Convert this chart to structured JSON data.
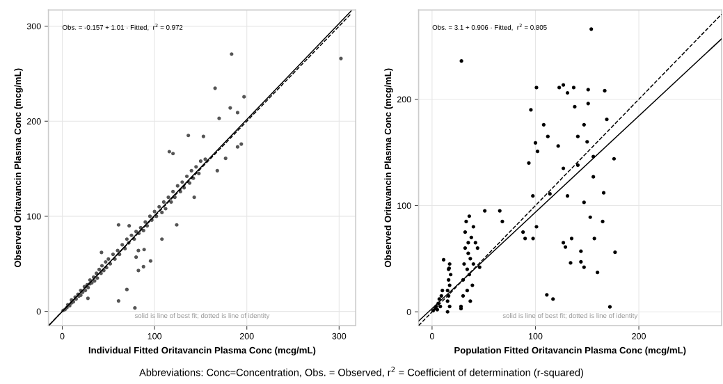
{
  "chart_data": [
    {
      "type": "scatter",
      "xlabel": "Individual Fitted Oritavancin Plasma Conc (mcg/mL)",
      "ylabel": "Observed Oritavancin Plasma Conc (mcg/mL)",
      "xlim": [
        -15,
        318
      ],
      "ylim": [
        -15,
        317
      ],
      "xticks": [
        0,
        100,
        200,
        300
      ],
      "yticks": [
        0,
        100,
        200,
        300
      ],
      "grid": true,
      "annotations": [
        "Obs. = -0.157 + 1.01 · Fitted,  r$^{2}$ = 0.972",
        "solid is line of best fit; dotted is line of identity"
      ],
      "series": [
        {
          "marker": "circle",
          "color": "#555555",
          "x": [
            1,
            3,
            5,
            6,
            8,
            10,
            10,
            12,
            14,
            15,
            17,
            18,
            20,
            20,
            22,
            24,
            25,
            27,
            28,
            30,
            30,
            32,
            34,
            35,
            37,
            38,
            40,
            42,
            43,
            45,
            47,
            48,
            50,
            52,
            55,
            57,
            60,
            62,
            65,
            68,
            70,
            72,
            75,
            78,
            80,
            83,
            85,
            88,
            90,
            92,
            95,
            97,
            100,
            102,
            105,
            108,
            110,
            112,
            115,
            118,
            120,
            122,
            125,
            128,
            130,
            132,
            135,
            138,
            140,
            142,
            145,
            148,
            150,
            155,
            183.5,
            302,
            165.6,
            197,
            170,
            190,
            182,
            136.6,
            153,
            190,
            194,
            177,
            116,
            120,
            168,
            143,
            124,
            61,
            72.5,
            82.5,
            88.7,
            95.7,
            88,
            82.5,
            42.5,
            70,
            61,
            78.7,
            27.8,
            80,
            108
          ],
          "values": [
            1,
            2,
            4,
            7,
            6,
            9,
            12,
            10,
            15,
            13,
            18,
            16,
            22,
            17,
            20,
            26,
            22,
            28,
            25,
            33,
            29,
            30,
            36,
            32,
            40,
            35,
            44,
            40,
            48,
            43,
            52,
            46,
            55,
            50,
            60,
            55,
            64,
            60,
            70,
            66,
            76,
            72,
            80,
            76,
            84,
            82,
            88,
            85,
            94,
            90,
            100,
            96,
            105,
            100,
            110,
            104,
            115,
            108,
            120,
            115,
            126,
            120,
            132,
            126,
            136,
            130,
            142,
            135,
            148,
            140,
            152,
            145,
            158,
            160,
            270.6,
            266,
            234.7,
            225.7,
            203,
            209,
            214,
            185,
            184,
            173,
            176,
            161,
            168,
            166,
            148,
            120,
            91,
            91,
            90,
            64,
            65,
            53,
            47,
            43,
            62,
            23,
            11,
            3.6,
            13.7,
            57,
            76
          ]
        },
        {
          "type": "line",
          "color": "#000000",
          "line_style": "solid",
          "x": [
            -14,
            313
          ],
          "values": [
            -14.3,
            316
          ]
        },
        {
          "type": "line",
          "color": "#000000",
          "line_style": "dashed",
          "x": [
            -14,
            313
          ],
          "values": [
            -14,
            313
          ]
        }
      ]
    },
    {
      "type": "scatter",
      "xlabel": "Population Fitted Oritavancin Plasma Conc (mcg/mL)",
      "ylabel": "Observed Oritavancin Plasma Conc (mcg/mL)",
      "xlim": [
        -13,
        280
      ],
      "ylim": [
        -13,
        284
      ],
      "xticks": [
        0,
        100,
        200
      ],
      "yticks": [
        0,
        100,
        200
      ],
      "grid": true,
      "annotations": [
        "Obs. = 3.1 + 0.906 · Fitted,  r$^{2}$ = 0.805",
        "solid is line of best fit; dotted is line of identity",
        "Abbreviations: Conc=Concentration, Obs. = Observed, r$^{2}$ = Coefficient of determination (r-squared)"
      ],
      "series": [
        {
          "marker": "circle",
          "color": "#000000",
          "x": [
            28.4,
            154,
            151,
            101,
            127,
            123,
            137,
            131,
            95.6,
            138,
            151,
            167,
            169,
            108,
            141,
            100,
            102,
            176,
            93.6,
            127,
            141,
            114,
            131,
            97.5,
            166,
            51,
            65.5,
            68,
            88,
            90,
            97.7,
            101,
            127,
            129,
            135,
            144,
            134,
            144,
            147,
            160,
            177,
            111,
            117,
            172,
            157,
            165,
            153,
            147,
            156,
            156,
            150,
            147,
            112,
            122,
            1,
            3,
            4,
            5,
            6,
            7,
            8,
            9,
            10,
            11.2,
            16.5,
            15,
            15,
            15,
            16,
            16,
            17,
            17,
            18,
            16,
            17,
            28,
            30,
            30,
            31,
            32,
            32,
            33,
            34,
            34,
            35,
            35,
            36,
            36,
            37,
            37,
            38,
            39,
            40,
            40,
            42,
            44,
            46,
            28
          ],
          "values": [
            236,
            266,
            209,
            211,
            213.5,
            211,
            211,
            206,
            190,
            193,
            196,
            208,
            181,
            176,
            165,
            159,
            151,
            144,
            140,
            135,
            138,
            111,
            109,
            109,
            112,
            95,
            95,
            85,
            75,
            69,
            69,
            80,
            65,
            61,
            69,
            57,
            46,
            47,
            42,
            37,
            56,
            16,
            12,
            4.6,
            69,
            85,
            89,
            103,
            127,
            146,
            160,
            176,
            165,
            156,
            1,
            3,
            5,
            2,
            8,
            12,
            5,
            15,
            20,
            49,
            41,
            0,
            10,
            20,
            30,
            40,
            5,
            25,
            35,
            15,
            45,
            5,
            15,
            30,
            45,
            60,
            75,
            85,
            20,
            40,
            55,
            65,
            90,
            35,
            10,
            50,
            70,
            25,
            45,
            80,
            65,
            60,
            42,
            3
          ]
        },
        {
          "type": "line",
          "color": "#000000",
          "line_style": "solid",
          "x": [
            -13,
            280
          ],
          "values": [
            -8.7,
            256.8
          ]
        },
        {
          "type": "line",
          "color": "#000000",
          "line_style": "dashed",
          "x": [
            -13,
            280
          ],
          "values": [
            -13,
            280
          ]
        }
      ]
    }
  ]
}
